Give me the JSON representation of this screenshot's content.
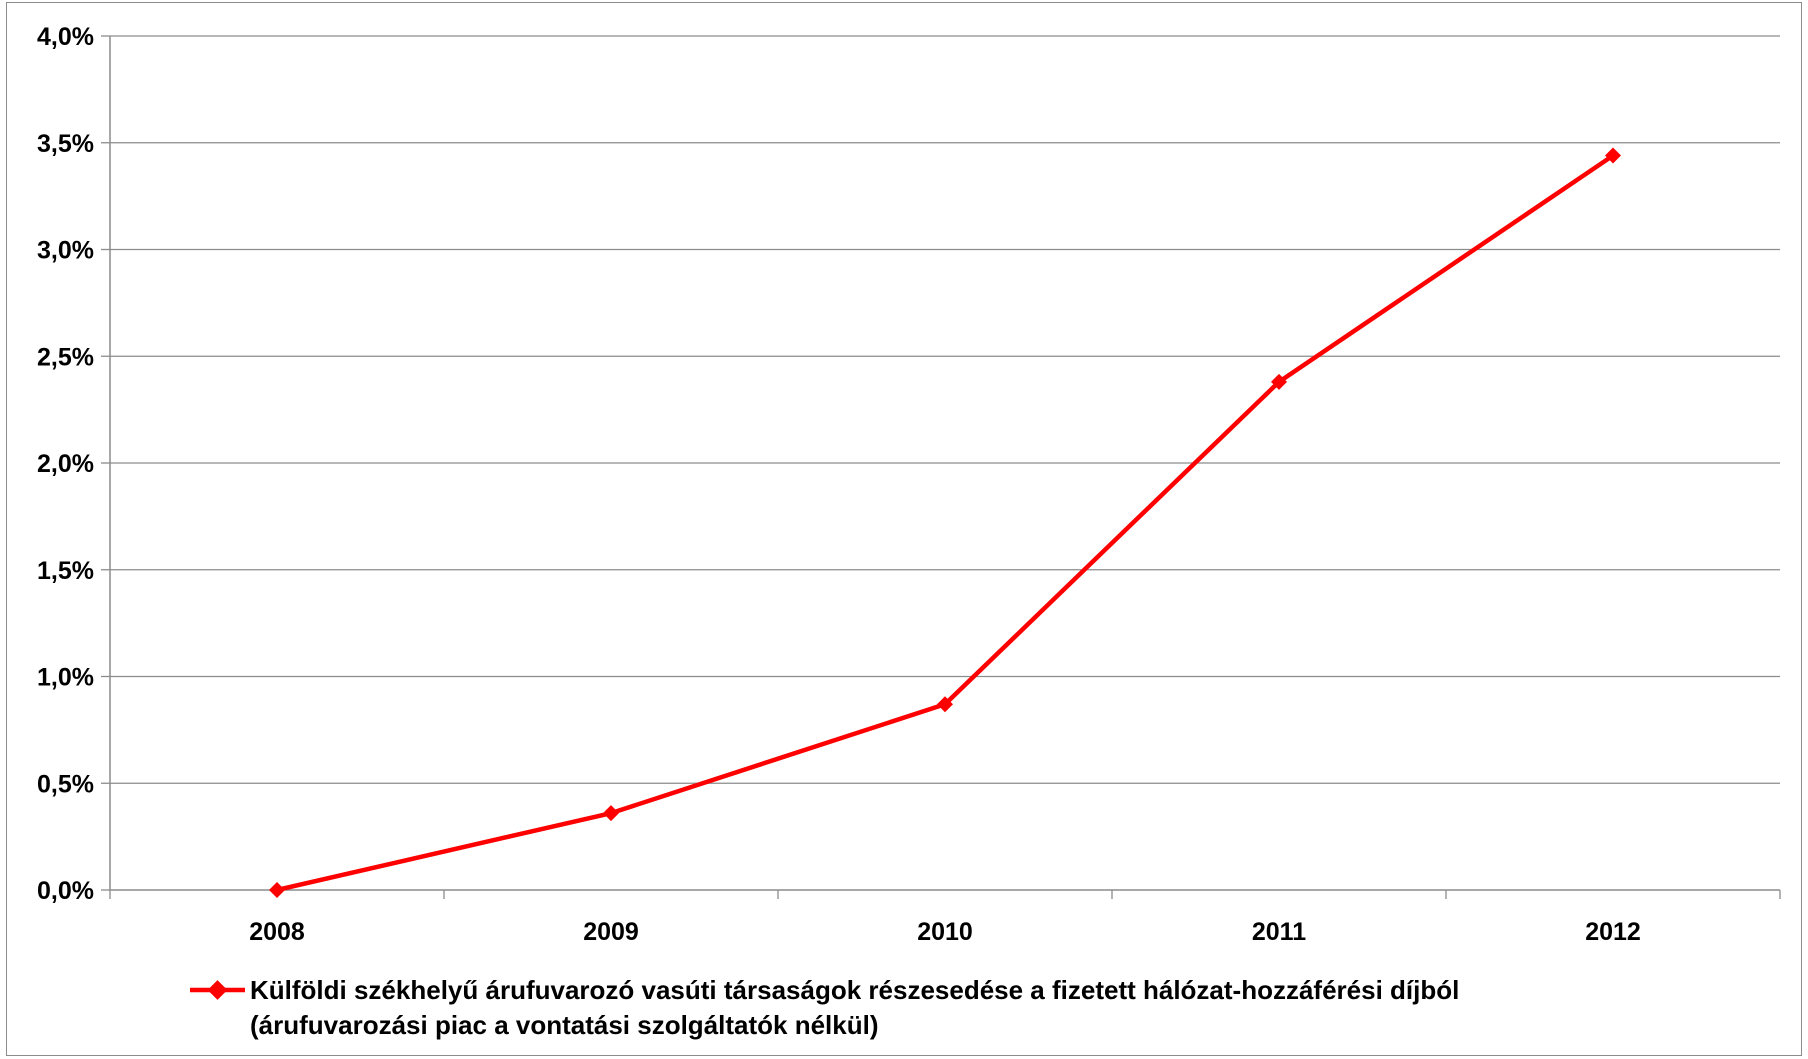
{
  "chart_data": {
    "type": "line",
    "categories": [
      "2008",
      "2009",
      "2010",
      "2011",
      "2012"
    ],
    "series": [
      {
        "name": "Külföldi székhelyű árufuvarozó vasúti társaságok részesedése a fizetett hálózat-hozzáférési díjból (árufuvarozási piac a vontatási szolgáltatók nélkül)",
        "legend_lines": [
          "Külföldi székhelyű árufuvarozó vasúti társaságok részesedése a fizetett hálózat-hozzáférési díjból",
          "(árufuvarozási piac a vontatási szolgáltatók nélkül)"
        ],
        "values": [
          0.0,
          0.36,
          0.87,
          2.38,
          3.44
        ],
        "color": "#ff0000",
        "marker": "diamond"
      }
    ],
    "y_ticks": [
      "0,0%",
      "0,5%",
      "1,0%",
      "1,5%",
      "2,0%",
      "2,5%",
      "3,0%",
      "3,5%",
      "4,0%"
    ],
    "ylim": [
      0,
      4
    ],
    "grid": true,
    "legend_position": "bottom",
    "title": "",
    "xlabel": "",
    "ylabel": ""
  }
}
